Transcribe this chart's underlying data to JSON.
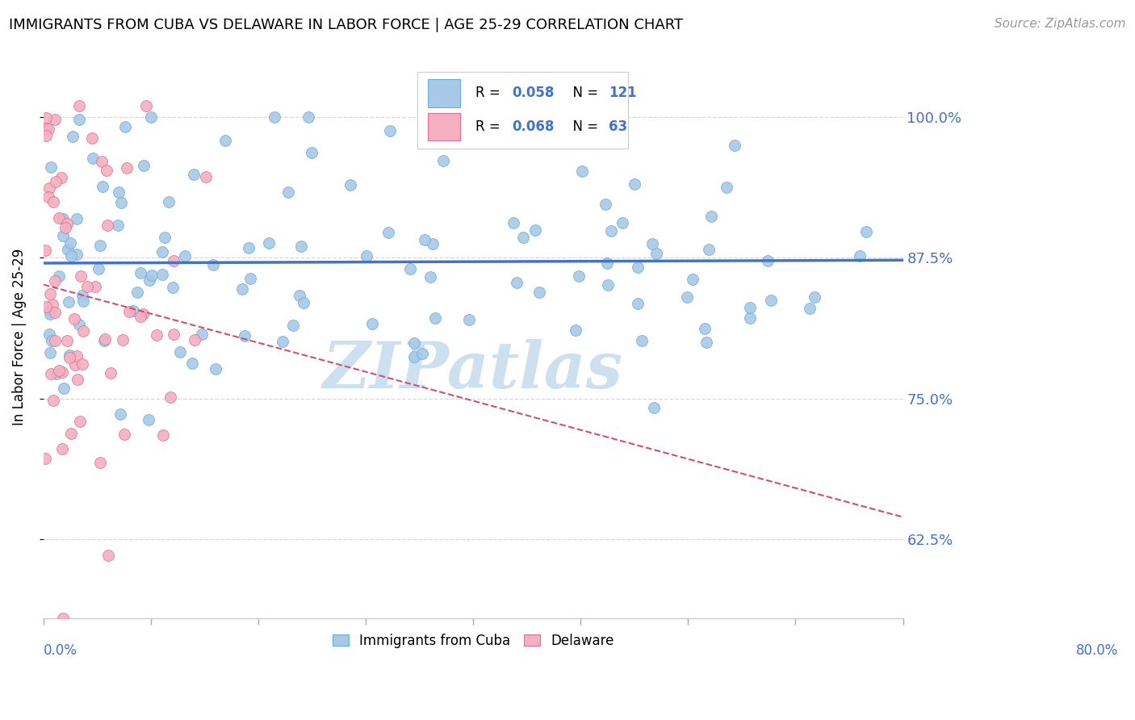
{
  "title": "IMMIGRANTS FROM CUBA VS DELAWARE IN LABOR FORCE | AGE 25-29 CORRELATION CHART",
  "source": "Source: ZipAtlas.com",
  "ylabel": "In Labor Force | Age 25-29",
  "legend_entries": [
    {
      "label": "Immigrants from Cuba",
      "R": "0.058",
      "N": "121"
    },
    {
      "label": "Delaware",
      "R": "0.068",
      "N": "63"
    }
  ],
  "ytick_labels": [
    "62.5%",
    "75.0%",
    "87.5%",
    "100.0%"
  ],
  "ytick_values": [
    0.625,
    0.75,
    0.875,
    1.0
  ],
  "x_min": 0.0,
  "x_max": 0.8,
  "y_min": 0.555,
  "y_max": 1.055,
  "blue_scatter_color": "#a8c8e8",
  "blue_edge_color": "#6baed6",
  "pink_scatter_color": "#f4b0c0",
  "pink_edge_color": "#e07090",
  "blue_line_color": "#4472c4",
  "pink_line_color": "#d05070",
  "watermark_color": "#cde0f0",
  "grid_color": "#d8d8d8",
  "tick_color": "#aaaaaa",
  "label_color": "#4472c4",
  "legend_R_color": "#4472c4",
  "legend_N_color": "#4472c4"
}
